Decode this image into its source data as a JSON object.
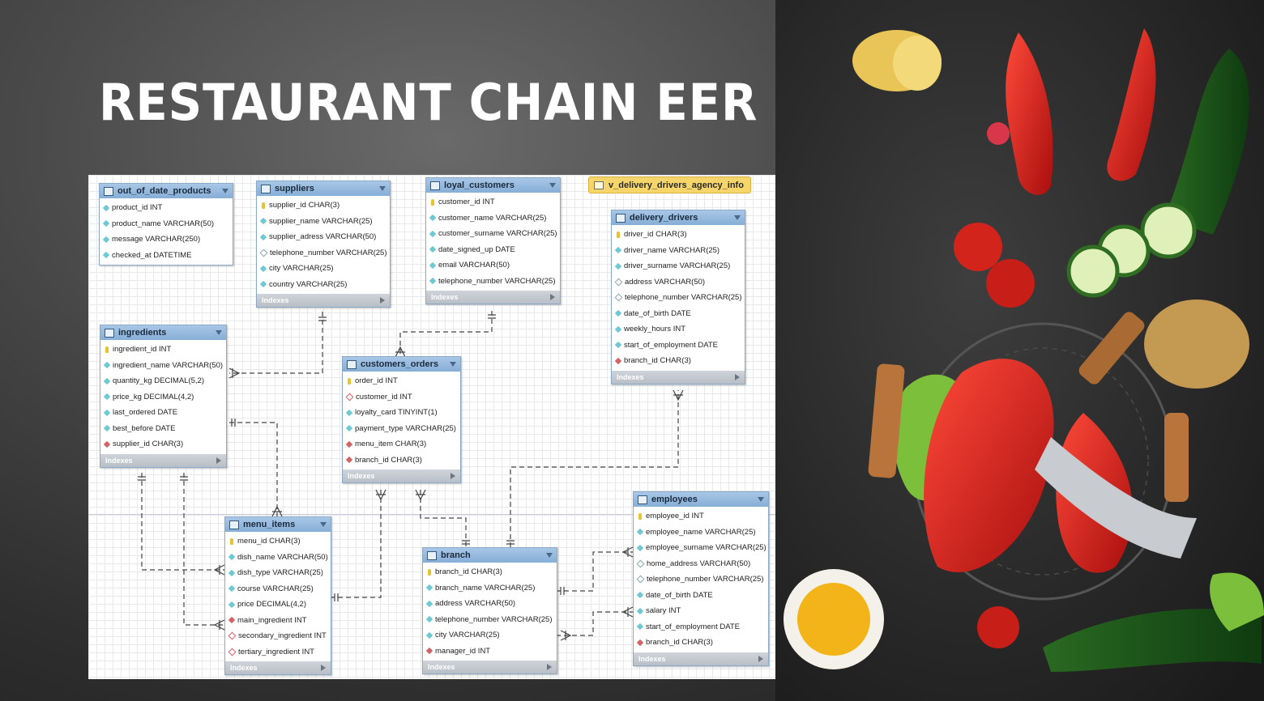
{
  "title": "RESTAURANT CHAIN EER DIAGRAM",
  "indexes_label": "Indexes",
  "view": {
    "name": "v_delivery_drivers_agency_info"
  },
  "tables": [
    {
      "id": "out_of_date_products",
      "name": "out_of_date_products",
      "has_indexes": false,
      "columns": [
        {
          "label": "product_id INT",
          "key": "col"
        },
        {
          "label": "product_name VARCHAR(50)",
          "key": "col"
        },
        {
          "label": "message VARCHAR(250)",
          "key": "col"
        },
        {
          "label": "checked_at DATETIME",
          "key": "col"
        }
      ]
    },
    {
      "id": "suppliers",
      "name": "suppliers",
      "has_indexes": true,
      "columns": [
        {
          "label": "supplier_id CHAR(3)",
          "key": "pk"
        },
        {
          "label": "supplier_name VARCHAR(25)",
          "key": "col"
        },
        {
          "label": "supplier_adress VARCHAR(50)",
          "key": "col"
        },
        {
          "label": "telephone_number VARCHAR(25)",
          "key": "nul"
        },
        {
          "label": "city VARCHAR(25)",
          "key": "col"
        },
        {
          "label": "country VARCHAR(25)",
          "key": "col"
        }
      ]
    },
    {
      "id": "loyal_customers",
      "name": "loyal_customers",
      "has_indexes": true,
      "columns": [
        {
          "label": "customer_id INT",
          "key": "pk"
        },
        {
          "label": "customer_name VARCHAR(25)",
          "key": "col"
        },
        {
          "label": "customer_surname VARCHAR(25)",
          "key": "col"
        },
        {
          "label": "date_signed_up DATE",
          "key": "col"
        },
        {
          "label": "email VARCHAR(50)",
          "key": "col"
        },
        {
          "label": "telephone_number VARCHAR(25)",
          "key": "col"
        }
      ]
    },
    {
      "id": "delivery_drivers",
      "name": "delivery_drivers",
      "has_indexes": true,
      "columns": [
        {
          "label": "driver_id CHAR(3)",
          "key": "pk"
        },
        {
          "label": "driver_name VARCHAR(25)",
          "key": "col"
        },
        {
          "label": "driver_surname VARCHAR(25)",
          "key": "col"
        },
        {
          "label": "address VARCHAR(50)",
          "key": "nul"
        },
        {
          "label": "telephone_number VARCHAR(25)",
          "key": "nul"
        },
        {
          "label": "date_of_birth DATE",
          "key": "col"
        },
        {
          "label": "weekly_hours INT",
          "key": "col"
        },
        {
          "label": "start_of_employment DATE",
          "key": "col"
        },
        {
          "label": "branch_id CHAR(3)",
          "key": "fk"
        }
      ]
    },
    {
      "id": "ingredients",
      "name": "ingredients",
      "has_indexes": true,
      "columns": [
        {
          "label": "ingredient_id INT",
          "key": "pk"
        },
        {
          "label": "ingredient_name VARCHAR(50)",
          "key": "col"
        },
        {
          "label": "quantity_kg DECIMAL(5,2)",
          "key": "col"
        },
        {
          "label": "price_kg DECIMAL(4,2)",
          "key": "col"
        },
        {
          "label": "last_ordered DATE",
          "key": "col"
        },
        {
          "label": "best_before DATE",
          "key": "col"
        },
        {
          "label": "supplier_id CHAR(3)",
          "key": "fk"
        }
      ]
    },
    {
      "id": "customers_orders",
      "name": "customers_orders",
      "has_indexes": true,
      "columns": [
        {
          "label": "order_id INT",
          "key": "pk"
        },
        {
          "label": "customer_id INT",
          "key": "fkn"
        },
        {
          "label": "loyalty_card TINYINT(1)",
          "key": "col"
        },
        {
          "label": "payment_type VARCHAR(25)",
          "key": "col"
        },
        {
          "label": "menu_item CHAR(3)",
          "key": "fk"
        },
        {
          "label": "branch_id CHAR(3)",
          "key": "fk"
        }
      ]
    },
    {
      "id": "menu_items",
      "name": "menu_items",
      "has_indexes": true,
      "columns": [
        {
          "label": "menu_id CHAR(3)",
          "key": "pk"
        },
        {
          "label": "dish_name VARCHAR(50)",
          "key": "col"
        },
        {
          "label": "dish_type VARCHAR(25)",
          "key": "col"
        },
        {
          "label": "course VARCHAR(25)",
          "key": "col"
        },
        {
          "label": "price DECIMAL(4,2)",
          "key": "col"
        },
        {
          "label": "main_ingredient INT",
          "key": "fk"
        },
        {
          "label": "secondary_ingredient INT",
          "key": "fkn"
        },
        {
          "label": "tertiary_ingredient INT",
          "key": "fkn"
        }
      ]
    },
    {
      "id": "branch",
      "name": "branch",
      "has_indexes": true,
      "columns": [
        {
          "label": "branch_id CHAR(3)",
          "key": "pk"
        },
        {
          "label": "branch_name VARCHAR(25)",
          "key": "col"
        },
        {
          "label": "address VARCHAR(50)",
          "key": "col"
        },
        {
          "label": "telephone_number VARCHAR(25)",
          "key": "col"
        },
        {
          "label": "city VARCHAR(25)",
          "key": "col"
        },
        {
          "label": "manager_id INT",
          "key": "fk"
        }
      ]
    },
    {
      "id": "employees",
      "name": "employees",
      "has_indexes": true,
      "columns": [
        {
          "label": "employee_id INT",
          "key": "pk"
        },
        {
          "label": "employee_name VARCHAR(25)",
          "key": "col"
        },
        {
          "label": "employee_surname VARCHAR(25)",
          "key": "col"
        },
        {
          "label": "home_address VARCHAR(50)",
          "key": "nul"
        },
        {
          "label": "telephone_number VARCHAR(25)",
          "key": "nul"
        },
        {
          "label": "date_of_birth DATE",
          "key": "col"
        },
        {
          "label": "salary INT",
          "key": "col"
        },
        {
          "label": "start_of_employment DATE",
          "key": "col"
        },
        {
          "label": "branch_id CHAR(3)",
          "key": "fk"
        }
      ]
    }
  ]
}
